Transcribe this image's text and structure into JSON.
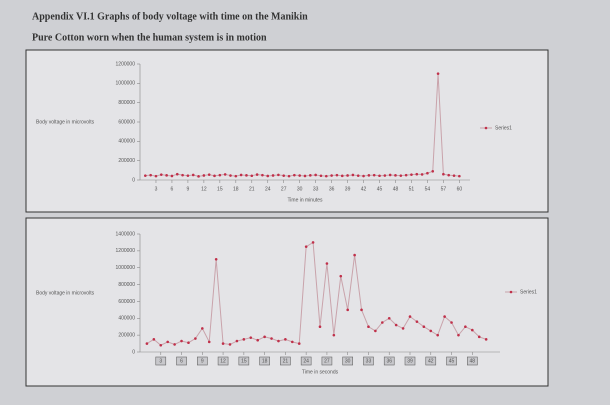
{
  "header": {
    "title": "Appendix VI.1 Graphs of body voltage with time on the Manikin",
    "subtitle": "Pure Cotton worn when the human system is in motion"
  },
  "chart_data": [
    {
      "type": "line",
      "y_label": "Body voltage in microvolts",
      "x_label": "Time in minutes",
      "x": [
        1,
        2,
        3,
        4,
        5,
        6,
        7,
        8,
        9,
        10,
        11,
        12,
        13,
        14,
        15,
        16,
        17,
        18,
        19,
        20,
        21,
        22,
        23,
        24,
        25,
        26,
        27,
        28,
        29,
        30,
        31,
        32,
        33,
        34,
        35,
        36,
        37,
        38,
        39,
        40,
        41,
        42,
        43,
        44,
        45,
        46,
        47,
        48,
        49,
        50,
        51,
        52,
        53,
        54,
        55,
        56,
        57,
        58,
        59,
        60
      ],
      "series": [
        {
          "name": "Series1",
          "color": "#c9a3ab",
          "marker_color": "#c0304a",
          "values": [
            45000,
            50000,
            40000,
            55000,
            48000,
            42000,
            60000,
            50000,
            45000,
            52000,
            38000,
            47000,
            55000,
            43000,
            50000,
            58000,
            46000,
            40000,
            52000,
            48000,
            44000,
            56000,
            50000,
            42000,
            47000,
            53000,
            45000,
            40000,
            50000,
            46000,
            42000,
            48000,
            52000,
            44000,
            40000,
            46000,
            50000,
            43000,
            47000,
            52000,
            45000,
            41000,
            48000,
            50000,
            44000,
            46000,
            52000,
            48000,
            45000,
            50000,
            55000,
            60000,
            58000,
            70000,
            90000,
            1100000,
            60000,
            50000,
            45000,
            40000
          ]
        }
      ],
      "xlim": [
        0,
        62
      ],
      "xticks": [
        3,
        6,
        9,
        12,
        15,
        18,
        21,
        24,
        27,
        30,
        33,
        36,
        39,
        42,
        45,
        48,
        51,
        54,
        57,
        60
      ],
      "ylim": [
        0,
        1200000
      ],
      "yticks": [
        0,
        200000,
        400000,
        600000,
        800000,
        1000000,
        1200000
      ]
    },
    {
      "type": "line",
      "y_label": "Body voltage in microvolts",
      "x_label": "Time in seconds",
      "x": [
        1,
        2,
        3,
        4,
        5,
        6,
        7,
        8,
        9,
        10,
        11,
        12,
        13,
        14,
        15,
        16,
        17,
        18,
        19,
        20,
        21,
        22,
        23,
        24,
        25,
        26,
        27,
        28,
        29,
        30,
        31,
        32,
        33,
        34,
        35,
        36,
        37,
        38,
        39,
        40,
        41,
        42,
        43,
        44,
        45,
        46,
        47,
        48,
        49,
        50
      ],
      "series": [
        {
          "name": "Series1",
          "color": "#c9a3ab",
          "marker_color": "#c0304a",
          "values": [
            100000,
            150000,
            80000,
            120000,
            90000,
            130000,
            110000,
            160000,
            280000,
            120000,
            1100000,
            100000,
            90000,
            130000,
            150000,
            170000,
            140000,
            180000,
            160000,
            130000,
            150000,
            120000,
            100000,
            1250000,
            1300000,
            300000,
            1050000,
            200000,
            900000,
            500000,
            1150000,
            500000,
            300000,
            250000,
            350000,
            400000,
            320000,
            280000,
            420000,
            360000,
            300000,
            250000,
            200000,
            420000,
            350000,
            200000,
            300000,
            260000,
            180000,
            150000
          ]
        }
      ],
      "xlim": [
        0,
        52
      ],
      "xticks": [
        3,
        6,
        9,
        12,
        15,
        18,
        21,
        24,
        27,
        30,
        33,
        36,
        39,
        42,
        45,
        48
      ],
      "ylim": [
        0,
        1400000
      ],
      "yticks": [
        0,
        200000,
        400000,
        600000,
        800000,
        1000000,
        1200000,
        1400000
      ]
    }
  ]
}
